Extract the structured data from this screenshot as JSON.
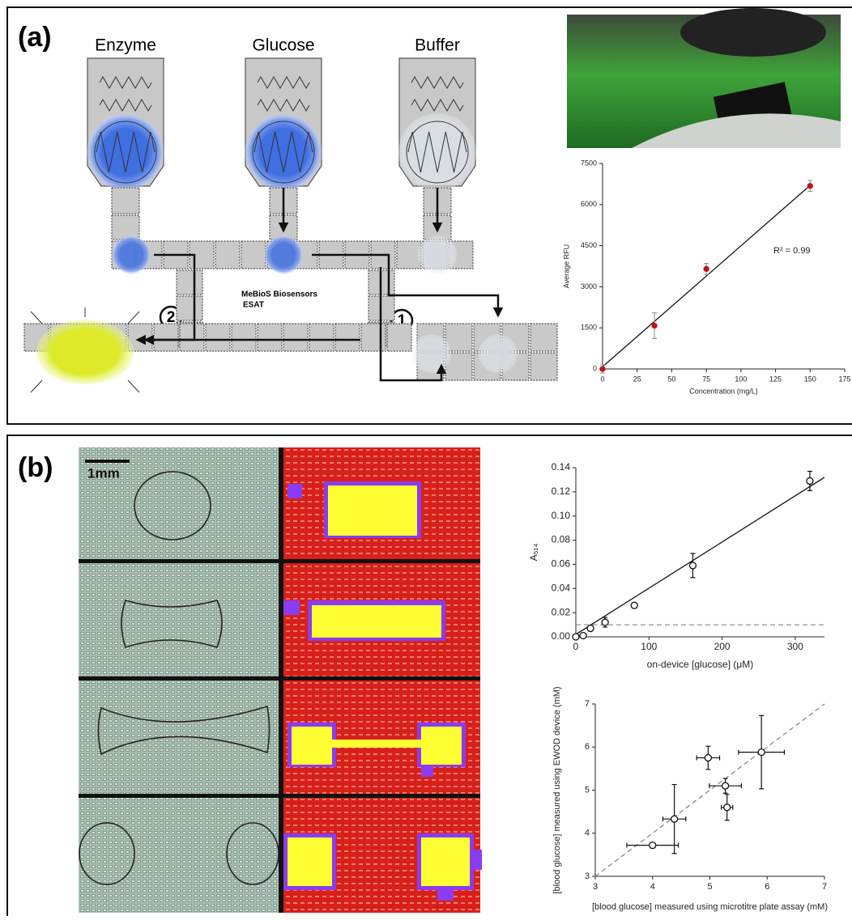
{
  "panels": {
    "a": "(a)",
    "b": "(b)"
  },
  "diagram": {
    "reservoirs": [
      "Enzyme",
      "Glucose",
      "Buffer"
    ],
    "lab_name": "MeBioS Biosensors",
    "lab_unit": "ESAT",
    "step_1": "1",
    "step_2": "2"
  },
  "image": {
    "scale_bar": "1mm"
  },
  "chart_data": [
    {
      "type": "scatter",
      "x": [
        0,
        37.5,
        75,
        150
      ],
      "y": [
        0,
        1580,
        3650,
        6680
      ],
      "yerr": [
        150,
        470,
        200,
        200
      ],
      "color": "#c0151b",
      "fit": {
        "x": [
          0,
          150
        ],
        "y": [
          80,
          6700
        ]
      },
      "xlim": [
        0,
        175
      ],
      "xticks": [
        0,
        25,
        50,
        75,
        100,
        125,
        150,
        175
      ],
      "ylim": [
        0,
        7500
      ],
      "yticks": [
        0,
        1500,
        3000,
        4500,
        6000,
        7500
      ],
      "xlabel": "Concentration (mg/L)",
      "ylabel": "Average RFU",
      "annotation": "R² = 0.99"
    },
    {
      "type": "scatter",
      "x": [
        0,
        10,
        20,
        40,
        80,
        160,
        320
      ],
      "y": [
        0,
        0.001,
        0.007,
        0.012,
        0.026,
        0.059,
        0.129
      ],
      "yerr": [
        0.001,
        0.001,
        0.002,
        0.004,
        0.002,
        0.01,
        0.008
      ],
      "color": "#ffffff",
      "fit": {
        "x": [
          0,
          340
        ],
        "y": [
          0.002,
          0.132
        ]
      },
      "hline": 0.01,
      "xlim": [
        0,
        340
      ],
      "xticks": [
        0,
        100,
        200,
        300
      ],
      "ylim": [
        0,
        0.14
      ],
      "yticks": [
        {
          "value": 0,
          "label": "0.00"
        },
        0.02,
        0.04,
        0.06,
        0.08,
        {
          "value": 0.1,
          "label": "0.10"
        },
        0.12,
        0.14
      ],
      "xlabel": "on-device [glucose] (μM)",
      "ylabel": "A₅₁₄"
    },
    {
      "type": "scatter",
      "x": [
        4.0,
        4.38,
        4.97,
        5.27,
        5.3,
        5.9
      ],
      "y": [
        3.72,
        4.33,
        5.75,
        5.1,
        4.6,
        5.88
      ],
      "xerr": [
        0.45,
        0.2,
        0.2,
        0.28,
        0.1,
        0.4
      ],
      "yerr": [
        0.06,
        0.8,
        0.27,
        0.17,
        0.3,
        0.85
      ],
      "color": "#ffffff",
      "fit": {
        "x": [
          3,
          7
        ],
        "y": [
          3,
          7
        ]
      },
      "fit_dashed": true,
      "xlim": [
        3,
        7
      ],
      "xticks": [
        3,
        4,
        5,
        6,
        7
      ],
      "ylim": [
        3,
        7
      ],
      "yticks": [
        3,
        4,
        5,
        6,
        7
      ],
      "xlabel": "[blood glucose] measured using microtitre plate assay (mM)",
      "ylabel": "[blood glucose] measured using EWOD device (mM)"
    }
  ]
}
